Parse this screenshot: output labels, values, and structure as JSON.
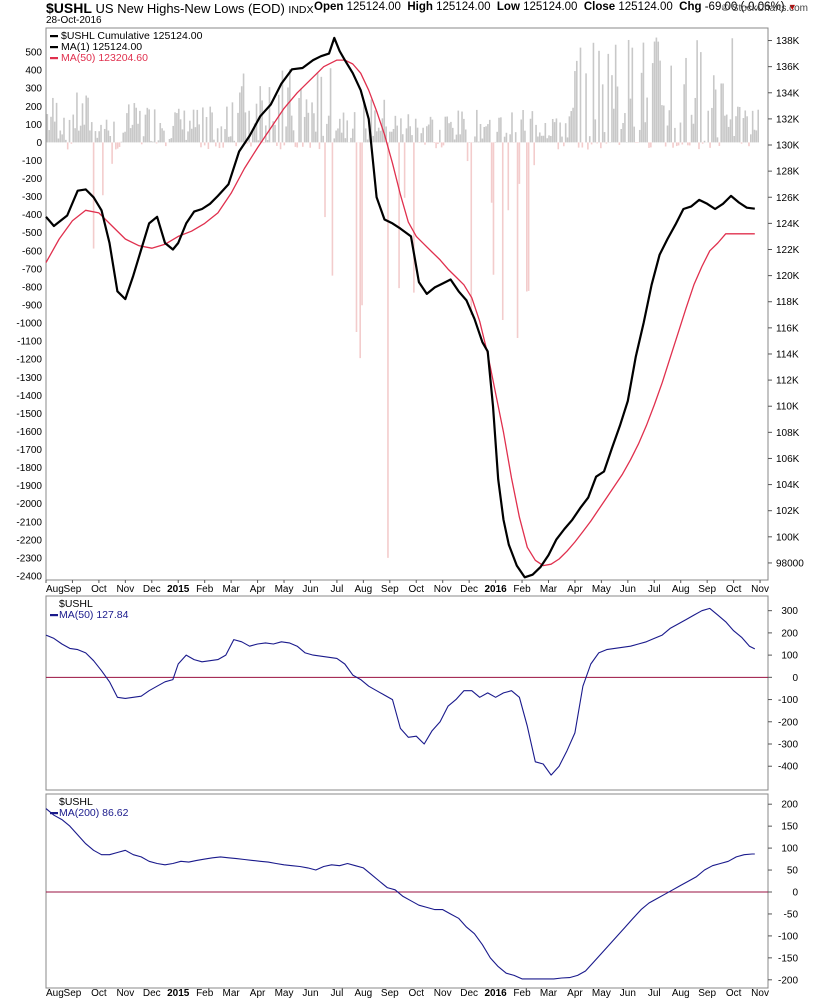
{
  "header": {
    "symbol": "$USHL",
    "name": "US New Highs-New Lows (EOD)",
    "exchange": "INDX",
    "date": "28-Oct-2016",
    "open_label": "Open",
    "open_value": "125124.00",
    "high_label": "High",
    "high_value": "125124.00",
    "low_label": "Low",
    "low_value": "125124.00",
    "close_label": "Close",
    "close_value": "125124.00",
    "chg_label": "Chg",
    "chg_value": "-69.00 (-0.06%)",
    "brand": "© StockCharts.com"
  },
  "colors": {
    "cumulative": "#000000",
    "ma50": "#e0304e",
    "histogram_pos": "#c8c8c8",
    "histogram_neg": "#f3cccc",
    "indicator": "#1a1a8c",
    "zero_line": "#9a1040",
    "grid": "#e6e6e6"
  },
  "x_axis_labels": [
    "Aug",
    "Sep",
    "Oct",
    "Nov",
    "Dec",
    "2015",
    "Feb",
    "Mar",
    "Apr",
    "May",
    "Jun",
    "Jul",
    "Aug",
    "Sep",
    "Oct",
    "Nov",
    "Dec",
    "2016",
    "Feb",
    "Mar",
    "Apr",
    "May",
    "Jun",
    "Jul",
    "Aug",
    "Sep",
    "Oct",
    "Nov"
  ],
  "chart_data": [
    {
      "type": "line",
      "panel": "main",
      "legend": [
        "$USHL Cumulative 125124.00",
        "MA(1) 125124.00",
        "MA(50) 123204.60"
      ],
      "left_axis": {
        "ylim": [
          -2400,
          600
        ],
        "ticks": [
          500,
          400,
          300,
          200,
          100,
          0,
          -100,
          -200,
          -300,
          -400,
          -500,
          -600,
          -700,
          -800,
          -900,
          -1000,
          -1100,
          -1200,
          -1300,
          -1400,
          -1500,
          -1600,
          -1700,
          -1800,
          -1900,
          -2000,
          -2100,
          -2200,
          -2300,
          -2400
        ]
      },
      "right_axis": {
        "ylim": [
          97000,
          138500
        ],
        "ticks": [
          "138K",
          "136K",
          "134K",
          "132K",
          "130K",
          "128K",
          "126K",
          "124K",
          "122K",
          "120K",
          "118K",
          "116K",
          "114K",
          "112K",
          "110K",
          "108K",
          "106K",
          "104K",
          "102K",
          "100K",
          "98000"
        ],
        "tick_values": [
          138000,
          136000,
          134000,
          132000,
          130000,
          128000,
          126000,
          124000,
          122000,
          120000,
          118000,
          116000,
          114000,
          112000,
          110000,
          108000,
          106000,
          104000,
          102000,
          100000,
          98000
        ]
      },
      "months_index": [
        0,
        1,
        2,
        3,
        4,
        5,
        6,
        7,
        8,
        9,
        10,
        11,
        12,
        13,
        14,
        15,
        16,
        17,
        18,
        19,
        20,
        21,
        22,
        23,
        24,
        25,
        26,
        27
      ],
      "series": [
        {
          "name": "$USHL Cumulative",
          "axis": "right",
          "x": [
            0,
            0.3,
            0.8,
            1.2,
            1.5,
            1.8,
            2.1,
            2.4,
            2.7,
            3.0,
            3.3,
            3.6,
            3.9,
            4.2,
            4.5,
            4.8,
            5.0,
            5.3,
            5.6,
            5.9,
            6.2,
            6.5,
            6.9,
            7.3,
            7.7,
            8.1,
            8.5,
            8.9,
            9.3,
            9.7,
            10.1,
            10.4,
            10.7,
            10.9,
            11.1,
            11.3,
            11.6,
            11.9,
            12.2,
            12.5,
            12.8,
            13.1,
            13.4,
            13.8,
            14.1,
            14.4,
            14.7,
            15.0,
            15.3,
            15.6,
            15.9,
            16.2,
            16.5,
            16.7,
            16.9,
            17.1,
            17.3,
            17.5,
            17.8,
            18.1,
            18.4,
            18.7,
            19.0,
            19.3,
            19.6,
            19.9,
            20.2,
            20.5,
            20.8,
            21.1,
            21.4,
            21.7,
            22.0,
            22.3,
            22.6,
            22.9,
            23.2,
            23.5,
            23.8,
            24.1,
            24.4,
            24.7,
            25.0,
            25.3,
            25.6,
            25.9,
            26.2,
            26.5,
            26.8
          ],
          "values": [
            124500,
            123800,
            124600,
            126500,
            126600,
            126000,
            125000,
            122500,
            118800,
            118200,
            120000,
            122000,
            124000,
            124500,
            122500,
            122000,
            122500,
            124000,
            124900,
            125100,
            125500,
            126100,
            127000,
            129500,
            130700,
            132200,
            133100,
            134700,
            135800,
            135900,
            136500,
            136800,
            137000,
            138200,
            137200,
            136500,
            135500,
            134200,
            132000,
            126000,
            124300,
            124000,
            123600,
            123000,
            119500,
            118600,
            119100,
            119400,
            119700,
            118800,
            118100,
            116700,
            114900,
            114200,
            110000,
            104400,
            101300,
            99400,
            97800,
            96900,
            97100,
            97700,
            98600,
            99800,
            100600,
            101300,
            102200,
            103000,
            104600,
            105000,
            106800,
            108500,
            110400,
            113800,
            116400,
            119300,
            121600,
            122800,
            123900,
            125100,
            125300,
            125800,
            125500,
            125100,
            125500,
            126100,
            125600,
            125200,
            125124
          ]
        },
        {
          "name": "MA(50)",
          "axis": "right",
          "x": [
            0,
            0.5,
            1.0,
            1.5,
            2.0,
            2.5,
            3.0,
            3.5,
            4.0,
            4.5,
            5.0,
            5.5,
            6.0,
            6.5,
            7.0,
            7.5,
            8.0,
            8.5,
            9.0,
            9.5,
            10.0,
            10.5,
            11.0,
            11.3,
            11.6,
            11.9,
            12.2,
            12.5,
            12.8,
            13.1,
            13.4,
            13.7,
            14.0,
            14.3,
            14.6,
            14.9,
            15.2,
            15.5,
            15.8,
            16.1,
            16.4,
            16.7,
            17.0,
            17.3,
            17.6,
            17.9,
            18.2,
            18.5,
            18.8,
            19.1,
            19.4,
            19.7,
            20.0,
            20.3,
            20.6,
            20.9,
            21.2,
            21.5,
            21.8,
            22.1,
            22.4,
            22.7,
            23.0,
            23.3,
            23.6,
            23.9,
            24.2,
            24.5,
            24.8,
            25.1,
            25.4,
            25.7,
            26.0,
            26.3,
            26.6,
            26.8
          ],
          "values": [
            121000,
            122800,
            124200,
            125000,
            124800,
            123800,
            122800,
            122300,
            122100,
            122400,
            123000,
            123400,
            124000,
            124800,
            126300,
            128200,
            129800,
            131300,
            132800,
            134000,
            135000,
            136000,
            136500,
            136500,
            136200,
            135500,
            134200,
            132600,
            130800,
            128600,
            126200,
            124100,
            123000,
            122400,
            121800,
            121200,
            120500,
            119900,
            119300,
            118300,
            116500,
            114000,
            111000,
            108000,
            104500,
            101500,
            99200,
            98200,
            97800,
            97900,
            98300,
            98900,
            99600,
            100400,
            101200,
            102100,
            103000,
            103900,
            104800,
            105900,
            107100,
            108500,
            110100,
            111800,
            113700,
            115600,
            117500,
            119300,
            120700,
            121900,
            122500,
            123200,
            123205,
            123205,
            123205,
            123205
          ]
        }
      ]
    },
    {
      "type": "line",
      "panel": "ma50",
      "legend": [
        "$USHL",
        "MA(50) 127.84"
      ],
      "ylim": [
        -480,
        330
      ],
      "ticks": [
        300,
        200,
        100,
        0,
        -100,
        -200,
        -300,
        -400
      ],
      "series": [
        {
          "name": "MA(50)",
          "x": [
            0,
            0.3,
            0.6,
            0.9,
            1.2,
            1.5,
            1.8,
            2.1,
            2.4,
            2.7,
            3.0,
            3.3,
            3.6,
            3.9,
            4.2,
            4.5,
            4.8,
            5.0,
            5.3,
            5.6,
            5.9,
            6.2,
            6.5,
            6.8,
            7.1,
            7.4,
            7.7,
            8.0,
            8.3,
            8.6,
            8.9,
            9.2,
            9.5,
            9.8,
            10.1,
            10.4,
            10.7,
            11.0,
            11.3,
            11.6,
            11.9,
            12.2,
            12.5,
            12.8,
            13.1,
            13.4,
            13.7,
            14.0,
            14.3,
            14.6,
            14.9,
            15.2,
            15.5,
            15.8,
            16.1,
            16.4,
            16.7,
            17.0,
            17.3,
            17.6,
            17.9,
            18.2,
            18.5,
            18.8,
            19.1,
            19.4,
            19.7,
            20.0,
            20.3,
            20.6,
            20.9,
            21.2,
            21.5,
            21.8,
            22.1,
            22.4,
            22.7,
            23.0,
            23.3,
            23.6,
            23.9,
            24.2,
            24.5,
            24.8,
            25.1,
            25.4,
            25.7,
            26.0,
            26.3,
            26.6,
            26.8
          ],
          "values": [
            190,
            175,
            150,
            130,
            125,
            110,
            75,
            30,
            -20,
            -90,
            -95,
            -90,
            -85,
            -60,
            -40,
            -20,
            -10,
            60,
            100,
            80,
            70,
            75,
            80,
            100,
            170,
            160,
            140,
            150,
            155,
            150,
            160,
            155,
            140,
            110,
            100,
            95,
            90,
            85,
            60,
            10,
            -10,
            -40,
            -60,
            -80,
            -100,
            -230,
            -270,
            -265,
            -300,
            -240,
            -200,
            -130,
            -100,
            -60,
            -60,
            -90,
            -70,
            -90,
            -70,
            -60,
            -90,
            -220,
            -380,
            -390,
            -440,
            -400,
            -330,
            -250,
            -40,
            60,
            110,
            125,
            130,
            135,
            140,
            150,
            160,
            175,
            190,
            220,
            240,
            260,
            280,
            300,
            310,
            280,
            250,
            210,
            180,
            140,
            128
          ]
        }
      ]
    },
    {
      "type": "line",
      "panel": "ma200",
      "legend": [
        "$USHL",
        "MA(200) 86.62"
      ],
      "ylim": [
        -205,
        205
      ],
      "ticks": [
        200,
        150,
        100,
        50,
        0,
        -50,
        -100,
        -150,
        -200
      ],
      "series": [
        {
          "name": "MA(200)",
          "x": [
            0,
            0.3,
            0.6,
            0.9,
            1.2,
            1.5,
            1.8,
            2.1,
            2.4,
            2.7,
            3.0,
            3.3,
            3.6,
            3.9,
            4.2,
            4.5,
            4.8,
            5.1,
            5.4,
            5.7,
            6.0,
            6.3,
            6.6,
            6.9,
            7.2,
            7.5,
            7.8,
            8.1,
            8.4,
            8.7,
            9.0,
            9.3,
            9.6,
            9.9,
            10.2,
            10.5,
            10.8,
            11.1,
            11.4,
            11.7,
            12.0,
            12.3,
            12.6,
            12.9,
            13.2,
            13.5,
            13.8,
            14.1,
            14.4,
            14.7,
            15.0,
            15.3,
            15.6,
            15.9,
            16.2,
            16.5,
            16.8,
            17.1,
            17.4,
            17.7,
            18.0,
            18.3,
            18.6,
            18.9,
            19.2,
            19.5,
            19.8,
            20.1,
            20.4,
            20.7,
            21.0,
            21.3,
            21.6,
            21.9,
            22.2,
            22.5,
            22.8,
            23.1,
            23.4,
            23.7,
            24.0,
            24.3,
            24.6,
            24.9,
            25.2,
            25.5,
            25.8,
            26.1,
            26.4,
            26.7,
            26.8
          ],
          "values": [
            190,
            175,
            165,
            150,
            130,
            110,
            95,
            85,
            85,
            90,
            95,
            85,
            80,
            70,
            65,
            62,
            65,
            70,
            68,
            72,
            75,
            78,
            80,
            78,
            76,
            74,
            72,
            70,
            68,
            65,
            62,
            60,
            58,
            55,
            50,
            58,
            62,
            60,
            65,
            60,
            55,
            40,
            25,
            10,
            5,
            -10,
            -20,
            -30,
            -35,
            -40,
            -40,
            -50,
            -60,
            -80,
            -95,
            -120,
            -150,
            -170,
            -185,
            -190,
            -198,
            -198,
            -198,
            -198,
            -198,
            -196,
            -195,
            -190,
            -180,
            -160,
            -140,
            -120,
            -100,
            -80,
            -60,
            -40,
            -25,
            -15,
            -5,
            5,
            15,
            25,
            35,
            50,
            60,
            65,
            70,
            80,
            85,
            86.62,
            86.62
          ]
        }
      ]
    }
  ]
}
